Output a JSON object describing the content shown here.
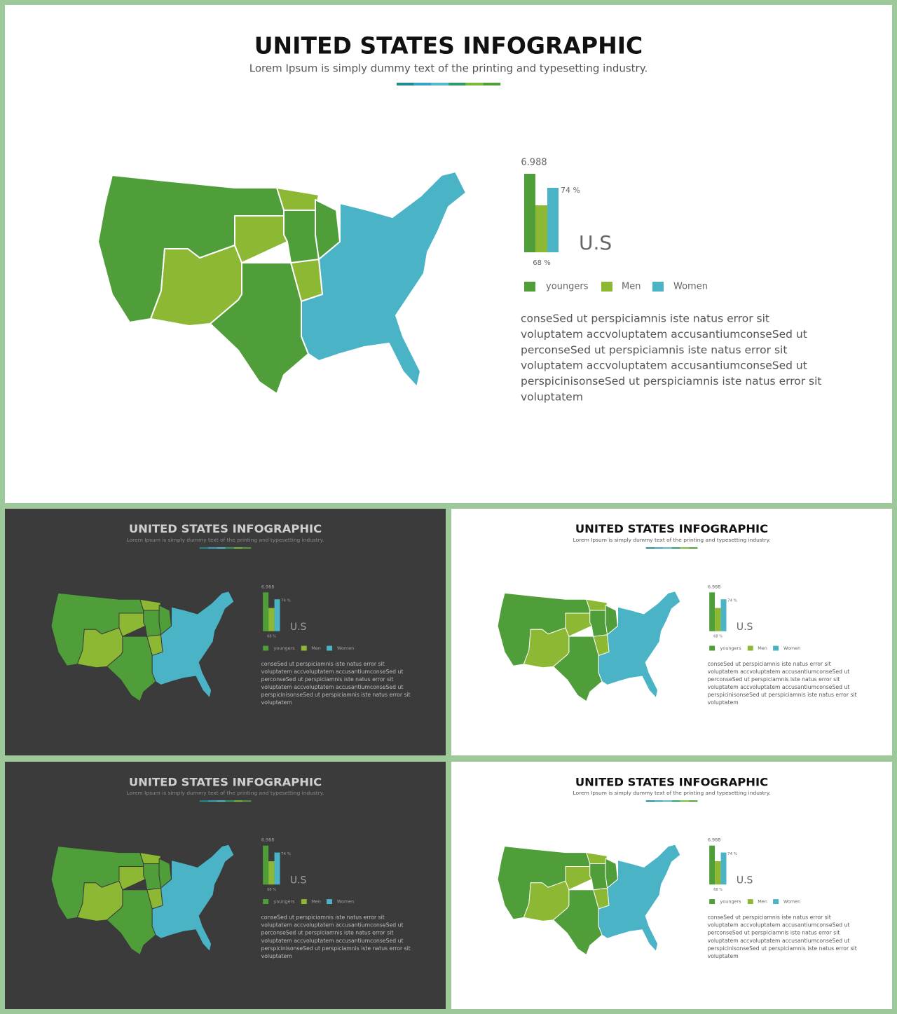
{
  "slide": {
    "title": "UNITED STATES INFOGRAPHIC",
    "subtitle": "Lorem Ipsum is simply dummy text of the printing and typesetting industry.",
    "bar_labels": [
      "6.988",
      "74 %",
      "68 %"
    ],
    "region": "U.S",
    "legend": [
      "youngers",
      "Men",
      "Women"
    ],
    "paragraph": [
      "conseSed ut perspiciamnis iste natus error sit",
      "voluptatem accvoluptatem accusantiumconseSed ut",
      "perconseSed ut perspiciamnis iste natus error sit",
      "voluptatem accvoluptatem accusantiumconseSed ut",
      "perspicinisonseSed ut perspiciamnis iste natus error sit",
      "voluptatem"
    ]
  }
}
